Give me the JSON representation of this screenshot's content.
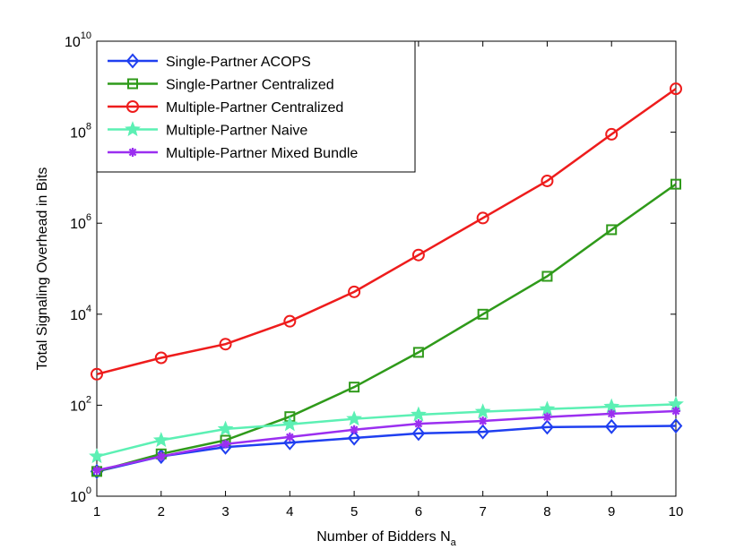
{
  "chart_data": {
    "type": "line",
    "xlabel": "Number of Bidders N",
    "xlabel_sub": "a",
    "ylabel": "Total Signaling Overhead in Bits",
    "x": [
      1,
      2,
      3,
      4,
      5,
      6,
      7,
      8,
      9,
      10
    ],
    "xlim": [
      1,
      10
    ],
    "ylim": [
      1,
      10000000000
    ],
    "yscale": "log",
    "grid": false,
    "legend": "top-left",
    "x_ticks": [
      "1",
      "2",
      "3",
      "4",
      "5",
      "6",
      "7",
      "8",
      "9",
      "10"
    ],
    "y_ticks": [
      {
        "base": "10",
        "exp": "0"
      },
      {
        "base": "10",
        "exp": "2"
      },
      {
        "base": "10",
        "exp": "4"
      },
      {
        "base": "10",
        "exp": "6"
      },
      {
        "base": "10",
        "exp": "8"
      },
      {
        "base": "10",
        "exp": "10"
      }
    ],
    "series": [
      {
        "name": "Single-Partner ACOPS",
        "color": "#1f3ff0",
        "marker": "diamond",
        "values": [
          3.5,
          7.5,
          12,
          15,
          19,
          24,
          26,
          33,
          34,
          35
        ]
      },
      {
        "name": "Single-Partner Centralized",
        "color": "#2f9a1a",
        "marker": "square",
        "values": [
          3.5,
          8.5,
          17,
          56,
          250,
          1450,
          10000,
          68000,
          720000,
          7200000
        ]
      },
      {
        "name": "Multiple-Partner Centralized",
        "color": "#ee1c1c",
        "marker": "circle",
        "values": [
          480,
          1100,
          2200,
          7000,
          31000,
          200000,
          1300000,
          8500000,
          90000000,
          900000000
        ]
      },
      {
        "name": "Multiple-Partner Naive",
        "color": "#5cf0b4",
        "marker": "star",
        "values": [
          7.5,
          17,
          30,
          38,
          50,
          62,
          72,
          82,
          93,
          105
        ]
      },
      {
        "name": "Multiple-Partner Mixed Bundle",
        "color": "#9b2ff0",
        "marker": "asterisk",
        "values": [
          3.7,
          7.5,
          14,
          20,
          29,
          39,
          45,
          55,
          65,
          74
        ]
      }
    ]
  }
}
